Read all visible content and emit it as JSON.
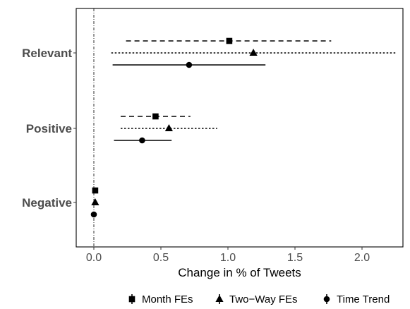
{
  "chart_data": {
    "type": "forest",
    "xlabel": "Change in % of Tweets",
    "ylabel": "",
    "xlim": [
      -0.13,
      2.38
    ],
    "x_ticks": [
      0.0,
      0.5,
      1.0,
      1.5,
      2.0
    ],
    "x_tick_labels": [
      "0.0",
      "0.5",
      "1.0",
      "1.5",
      "2.0"
    ],
    "categories": [
      "Relevant",
      "Positive",
      "Negative"
    ],
    "reference_line_x": 0,
    "grid": false,
    "legend_position": "bottom",
    "series": [
      {
        "name": "Month FEs",
        "marker": "square",
        "linestyle": "dashed",
        "points": [
          {
            "category": "Relevant",
            "estimate": 1.01,
            "ci_low": 0.24,
            "ci_high": 1.77
          },
          {
            "category": "Positive",
            "estimate": 0.46,
            "ci_low": 0.2,
            "ci_high": 0.72
          },
          {
            "category": "Negative",
            "estimate": 0.01,
            "ci_low": 0.01,
            "ci_high": 0.01
          }
        ]
      },
      {
        "name": "Two−Way FEs",
        "marker": "triangle",
        "linestyle": "dotted",
        "points": [
          {
            "category": "Relevant",
            "estimate": 1.19,
            "ci_low": 0.13,
            "ci_high": 2.25
          },
          {
            "category": "Positive",
            "estimate": 0.56,
            "ci_low": 0.2,
            "ci_high": 0.92
          },
          {
            "category": "Negative",
            "estimate": 0.01,
            "ci_low": 0.01,
            "ci_high": 0.01
          }
        ]
      },
      {
        "name": "Time Trend",
        "marker": "circle",
        "linestyle": "solid",
        "points": [
          {
            "category": "Relevant",
            "estimate": 0.71,
            "ci_low": 0.14,
            "ci_high": 1.28
          },
          {
            "category": "Positive",
            "estimate": 0.36,
            "ci_low": 0.15,
            "ci_high": 0.58
          },
          {
            "category": "Negative",
            "estimate": 0.0,
            "ci_low": 0.0,
            "ci_high": 0.0
          }
        ]
      }
    ]
  }
}
